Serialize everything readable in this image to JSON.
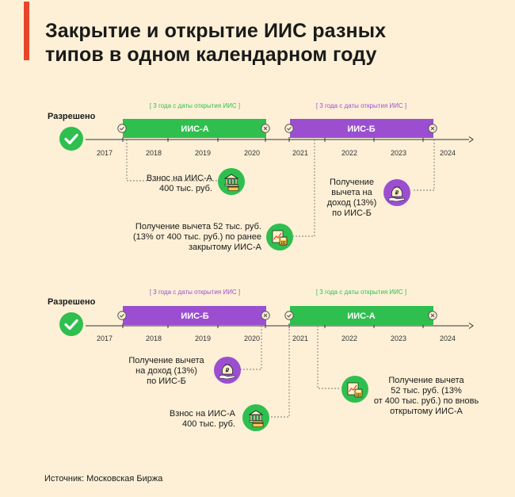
{
  "title": {
    "line1": "Закрытие и открытие ИИС разных",
    "line2": "типов в одном календарном году"
  },
  "colors": {
    "accent": "#e8462a",
    "green": "#2fbf4f",
    "purple": "#9b4fd0",
    "background": "#fdf0d6"
  },
  "years": [
    "2017",
    "2018",
    "2019",
    "2020",
    "2021",
    "2022",
    "2023",
    "2024"
  ],
  "section1": {
    "allowed_label": "Разрешено",
    "bar1": {
      "label": "ИИС-А",
      "period": "[ 3 года с даты открытия ИИС ]"
    },
    "bar2": {
      "label": "ИИС-Б",
      "period": "[ 3 года с даты открытия ИИС ]"
    },
    "event1": {
      "lines": [
        "Взнос на ИИС-А",
        "400 тыс. руб."
      ],
      "icon": "bank-card-icon"
    },
    "event2": {
      "lines": [
        "Получение вычета 52 тыс. руб.",
        "(13% от 400 тыс. руб.) по ранее",
        "закрытому ИИС-А"
      ],
      "icon": "chart-document-icon"
    },
    "event3": {
      "lines": [
        "Получение",
        "вычета на",
        "доход (13%)",
        "по ИИС-Б"
      ],
      "icon": "ruble-bag-icon"
    }
  },
  "section2": {
    "allowed_label": "Разрешено",
    "bar1": {
      "label": "ИИС-Б",
      "period": "[ 3 года с даты открытия ИИС ]"
    },
    "bar2": {
      "label": "ИИС-А",
      "period": "[ 3 года с даты открытия ИИС ]"
    },
    "event1": {
      "lines": [
        "Получение вычета",
        "на доход (13%)",
        "по ИИС-Б"
      ],
      "icon": "ruble-bag-icon"
    },
    "event2": {
      "lines": [
        "Взнос на ИИС-А",
        "400 тыс. руб."
      ],
      "icon": "bank-card-icon"
    },
    "event3": {
      "lines": [
        "Получение вычета",
        "52 тыс. руб. (13%",
        "от 400 тыс. руб.) по вновь",
        "открытому ИИС-А"
      ],
      "icon": "chart-document-icon"
    }
  },
  "source": "Источник: Московская Биржа"
}
